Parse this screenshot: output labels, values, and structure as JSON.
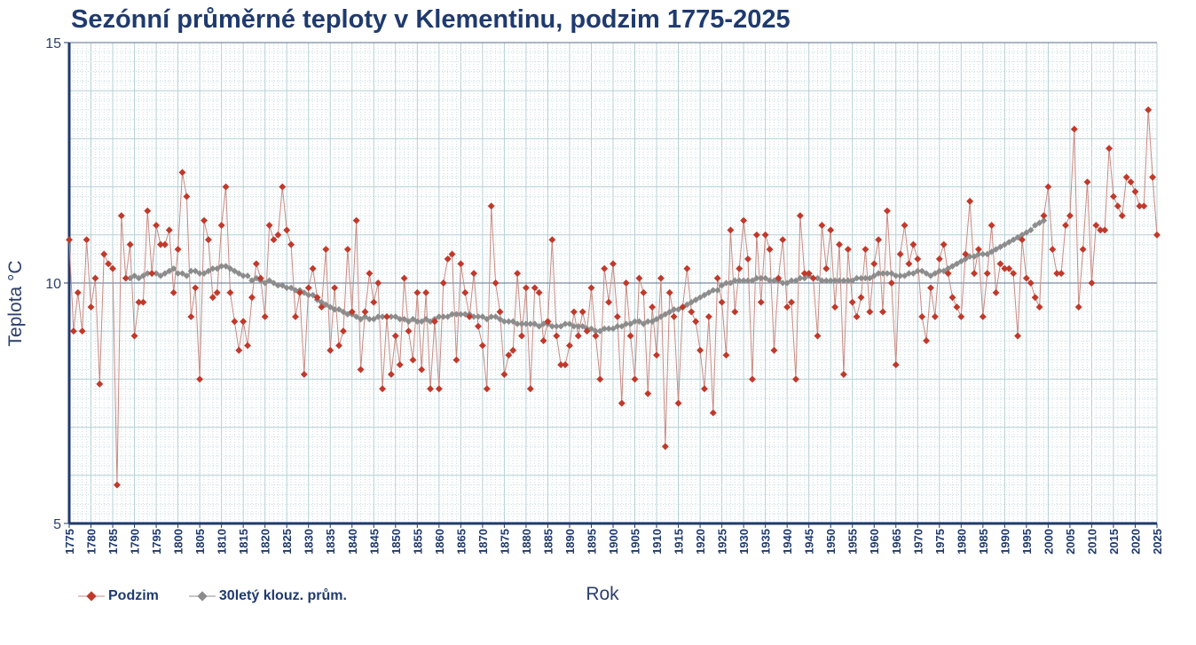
{
  "chart_data": {
    "type": "line",
    "title": "Sezónní průměrné teploty v Klementinu, podzim 1775-2025",
    "xlabel": "Rok",
    "ylabel": "Teplota  °C",
    "xlim": [
      1775,
      2025
    ],
    "ylim": [
      5,
      15
    ],
    "yticks": [
      5,
      10,
      15
    ],
    "grid": true,
    "legend_position": "bottom-left",
    "colors": {
      "series": "#c0392b",
      "line": "#c98a83",
      "moving": "#8c8c8c",
      "axis": "#1f3a6e",
      "grid": "#b4d0d6"
    },
    "series": [
      {
        "name": "Podzim",
        "x_start": 1775,
        "values": [
          10.9,
          9.0,
          9.8,
          9.0,
          10.9,
          9.5,
          10.1,
          7.9,
          10.6,
          10.4,
          10.3,
          5.8,
          11.4,
          10.1,
          10.8,
          8.9,
          9.6,
          9.6,
          11.5,
          10.2,
          11.2,
          10.8,
          10.8,
          11.1,
          9.8,
          10.7,
          12.3,
          11.8,
          9.3,
          9.9,
          8.0,
          11.3,
          10.9,
          9.7,
          9.8,
          11.2,
          12.0,
          9.8,
          9.2,
          8.6,
          9.2,
          8.7,
          9.7,
          10.4,
          10.1,
          9.3,
          11.2,
          10.9,
          11.0,
          12.0,
          11.1,
          10.8,
          9.3,
          9.8,
          8.1,
          9.9,
          10.3,
          9.7,
          9.5,
          10.7,
          8.6,
          9.9,
          8.7,
          9.0,
          10.7,
          9.4,
          11.3,
          8.2,
          9.4,
          10.2,
          9.6,
          10.0,
          7.8,
          9.3,
          8.1,
          8.9,
          8.3,
          10.1,
          9.0,
          8.4,
          9.8,
          8.2,
          9.8,
          7.8,
          9.2,
          7.8,
          10.0,
          10.5,
          10.6,
          8.4,
          10.4,
          9.8,
          9.3,
          10.2,
          9.1,
          8.7,
          7.8,
          11.6,
          10.0,
          9.4,
          8.1,
          8.5,
          8.6,
          10.2,
          8.9,
          9.9,
          7.8,
          9.9,
          9.8,
          8.8,
          9.2,
          10.9,
          8.9,
          8.3,
          8.3,
          8.7,
          9.4,
          8.9,
          9.4,
          9.0,
          9.9,
          8.9,
          8.0,
          10.3,
          9.6,
          10.4,
          9.3,
          7.5,
          10.0,
          8.9,
          8.0,
          10.1,
          9.8,
          7.7,
          9.5,
          8.5,
          10.1,
          6.6,
          9.8,
          9.3,
          7.5,
          9.5,
          10.3,
          9.4,
          9.2,
          8.6,
          7.8,
          9.3,
          7.3,
          10.1,
          9.6,
          8.5,
          11.1,
          9.4,
          10.3,
          11.3,
          10.5,
          8.0,
          11.0,
          9.6,
          11.0,
          10.7,
          8.6,
          10.1,
          10.9,
          9.5,
          9.6,
          8.0,
          11.4,
          10.2,
          10.2,
          10.1,
          8.9,
          11.2,
          10.3,
          11.1,
          9.5,
          10.8,
          8.1,
          10.7,
          9.6,
          9.3,
          9.7,
          10.7,
          9.4,
          10.4,
          10.9,
          9.4,
          11.5,
          10.0,
          8.3,
          10.6,
          11.2,
          10.4,
          10.8,
          10.5,
          9.3,
          8.8,
          9.9,
          9.3,
          10.5,
          10.8,
          10.2,
          9.7,
          9.5,
          9.3,
          10.6,
          11.7,
          10.2,
          10.7,
          9.3,
          10.2,
          11.2,
          9.8,
          10.4,
          10.3,
          10.3,
          10.2,
          8.9,
          10.9,
          10.1,
          10.0,
          9.7,
          9.5,
          11.4,
          12.0,
          10.7,
          10.2,
          10.2,
          11.2,
          11.4,
          13.2,
          9.5,
          10.7,
          12.1,
          10.0,
          11.2,
          11.1,
          11.1,
          12.8,
          11.8,
          11.6,
          11.4,
          12.2,
          12.1,
          11.9,
          11.6,
          11.6,
          13.6,
          12.2,
          11.0
        ]
      },
      {
        "name": "30letý klouz. prům.",
        "x_start": 1789,
        "values": [
          10.1,
          10.15,
          10.1,
          10.15,
          10.2,
          10.2,
          10.2,
          10.15,
          10.2,
          10.25,
          10.3,
          10.2,
          10.2,
          10.15,
          10.25,
          10.25,
          10.2,
          10.2,
          10.25,
          10.3,
          10.3,
          10.35,
          10.35,
          10.3,
          10.25,
          10.2,
          10.15,
          10.15,
          10.05,
          10.1,
          10.05,
          10.0,
          10.05,
          10.0,
          9.95,
          9.95,
          9.9,
          9.9,
          9.85,
          9.85,
          9.8,
          9.75,
          9.75,
          9.65,
          9.6,
          9.55,
          9.5,
          9.45,
          9.45,
          9.4,
          9.35,
          9.35,
          9.3,
          9.25,
          9.3,
          9.25,
          9.25,
          9.3,
          9.3,
          9.3,
          9.3,
          9.3,
          9.25,
          9.25,
          9.2,
          9.25,
          9.2,
          9.2,
          9.25,
          9.2,
          9.25,
          9.3,
          9.3,
          9.3,
          9.35,
          9.35,
          9.35,
          9.35,
          9.35,
          9.3,
          9.3,
          9.3,
          9.25,
          9.3,
          9.3,
          9.25,
          9.2,
          9.2,
          9.2,
          9.15,
          9.15,
          9.15,
          9.15,
          9.15,
          9.1,
          9.15,
          9.15,
          9.1,
          9.1,
          9.1,
          9.15,
          9.15,
          9.1,
          9.1,
          9.1,
          9.05,
          9.05,
          9.0,
          9.0,
          9.05,
          9.05,
          9.05,
          9.1,
          9.1,
          9.15,
          9.15,
          9.2,
          9.2,
          9.15,
          9.2,
          9.2,
          9.25,
          9.3,
          9.35,
          9.4,
          9.45,
          9.45,
          9.5,
          9.55,
          9.6,
          9.65,
          9.7,
          9.75,
          9.8,
          9.85,
          9.85,
          9.95,
          10.0,
          10.0,
          10.05,
          10.05,
          10.05,
          10.05,
          10.05,
          10.1,
          10.1,
          10.1,
          10.05,
          10.05,
          10.05,
          10.0,
          10.0,
          10.05,
          10.05,
          10.1,
          10.1,
          10.15,
          10.1,
          10.1,
          10.05,
          10.05,
          10.05,
          10.05,
          10.05,
          10.05,
          10.05,
          10.05,
          10.1,
          10.1,
          10.1,
          10.1,
          10.15,
          10.2,
          10.2,
          10.2,
          10.2,
          10.15,
          10.15,
          10.15,
          10.2,
          10.2,
          10.25,
          10.25,
          10.2,
          10.15,
          10.2,
          10.25,
          10.25,
          10.3,
          10.35,
          10.4,
          10.45,
          10.5,
          10.55,
          10.55,
          10.6,
          10.6,
          10.6,
          10.65,
          10.7,
          10.75,
          10.8,
          10.85,
          10.9,
          10.95,
          11.0,
          11.05,
          11.1,
          11.2,
          11.25,
          11.3
        ]
      }
    ]
  }
}
